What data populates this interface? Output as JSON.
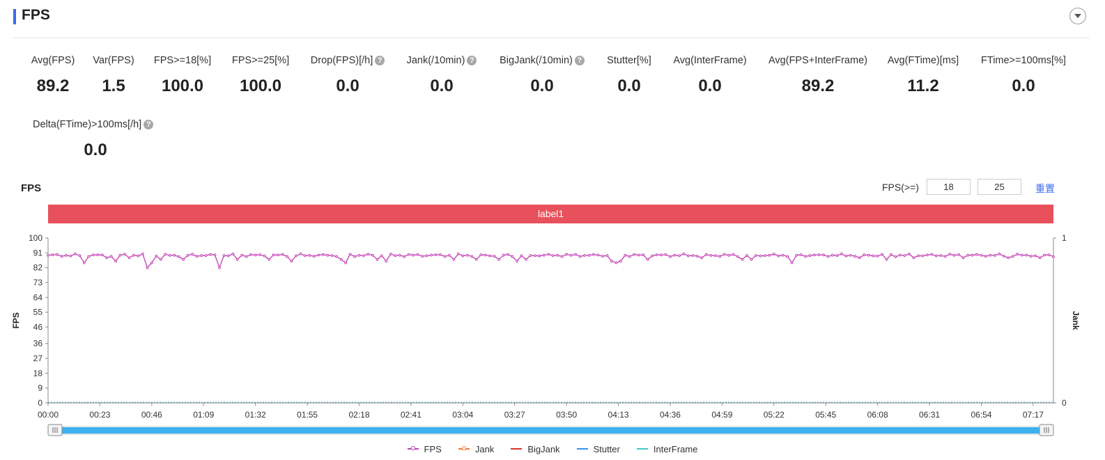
{
  "header": {
    "title": "FPS"
  },
  "metrics": [
    {
      "label": "Avg(FPS)",
      "value": "89.2",
      "help": false
    },
    {
      "label": "Var(FPS)",
      "value": "1.5",
      "help": false
    },
    {
      "label": "FPS>=18[%]",
      "value": "100.0",
      "help": false
    },
    {
      "label": "FPS>=25[%]",
      "value": "100.0",
      "help": false
    },
    {
      "label": "Drop(FPS)[/h]",
      "value": "0.0",
      "help": true
    },
    {
      "label": "Jank(/10min)",
      "value": "0.0",
      "help": true
    },
    {
      "label": "BigJank(/10min)",
      "value": "0.0",
      "help": true
    },
    {
      "label": "Stutter[%]",
      "value": "0.0",
      "help": false
    },
    {
      "label": "Avg(InterFrame)",
      "value": "0.0",
      "help": false
    },
    {
      "label": "Avg(FPS+InterFrame)",
      "value": "89.2",
      "help": false
    },
    {
      "label": "Avg(FTime)[ms]",
      "value": "11.2",
      "help": false
    },
    {
      "label": "FTime>=100ms[%]",
      "value": "0.0",
      "help": false
    },
    {
      "label": "Delta(FTime)>100ms[/h]",
      "value": "0.0",
      "help": true
    }
  ],
  "chart_panel": {
    "title": "FPS",
    "threshold_label": "FPS(>=)",
    "threshold_low": "18",
    "threshold_high": "25",
    "reset_label": "重置",
    "band_label": "label1",
    "band_color": "#e8505b"
  },
  "chart_data": {
    "type": "line",
    "ylabel": "FPS",
    "y2label": "Jank",
    "ylim": [
      0,
      100
    ],
    "y_ticks": [
      0,
      9,
      18,
      27,
      36,
      46,
      55,
      64,
      73,
      82,
      91,
      100
    ],
    "y2_ticks": [
      0,
      1
    ],
    "x_ticks": [
      "00:00",
      "00:23",
      "00:46",
      "01:09",
      "01:32",
      "01:55",
      "02:18",
      "02:41",
      "03:04",
      "03:27",
      "03:50",
      "04:13",
      "04:36",
      "04:59",
      "05:22",
      "05:45",
      "06:08",
      "06:31",
      "06:54",
      "07:17"
    ],
    "x_range_seconds": [
      0,
      446
    ],
    "series": [
      {
        "name": "FPS",
        "color": "#c23fb3",
        "baseline": 89.5,
        "dips": [
          {
            "t": 15,
            "value": 85
          },
          {
            "t": 26,
            "value": 88
          },
          {
            "t": 30,
            "value": 86
          },
          {
            "t": 35,
            "value": 88
          },
          {
            "t": 43,
            "value": 82
          },
          {
            "t": 46,
            "value": 85
          },
          {
            "t": 49,
            "value": 87
          },
          {
            "t": 60,
            "value": 87
          },
          {
            "t": 75,
            "value": 82
          },
          {
            "t": 83,
            "value": 87
          },
          {
            "t": 98,
            "value": 87
          },
          {
            "t": 107,
            "value": 86
          },
          {
            "t": 130,
            "value": 87
          },
          {
            "t": 131,
            "value": 85
          },
          {
            "t": 146,
            "value": 87
          },
          {
            "t": 150,
            "value": 86
          },
          {
            "t": 179,
            "value": 87
          },
          {
            "t": 190,
            "value": 87
          },
          {
            "t": 199,
            "value": 87
          },
          {
            "t": 207,
            "value": 86
          },
          {
            "t": 212,
            "value": 87
          },
          {
            "t": 250,
            "value": 86
          },
          {
            "t": 252,
            "value": 85
          },
          {
            "t": 254,
            "value": 86
          },
          {
            "t": 265,
            "value": 87
          },
          {
            "t": 290,
            "value": 88
          },
          {
            "t": 308,
            "value": 87
          },
          {
            "t": 312,
            "value": 87
          },
          {
            "t": 330,
            "value": 85
          },
          {
            "t": 360,
            "value": 88
          },
          {
            "t": 372,
            "value": 87
          },
          {
            "t": 384,
            "value": 88
          },
          {
            "t": 405,
            "value": 88
          },
          {
            "t": 425,
            "value": 88
          },
          {
            "t": 440,
            "value": 88
          }
        ]
      },
      {
        "name": "Jank",
        "color": "#f07a32"
      },
      {
        "name": "BigJank",
        "color": "#d9342c"
      },
      {
        "name": "Stutter",
        "color": "#3e8ee8"
      },
      {
        "name": "InterFrame",
        "color": "#3cc9c9"
      }
    ]
  },
  "slider": {
    "start_fraction": 0,
    "end_fraction": 1,
    "color": "#3db1ef"
  }
}
